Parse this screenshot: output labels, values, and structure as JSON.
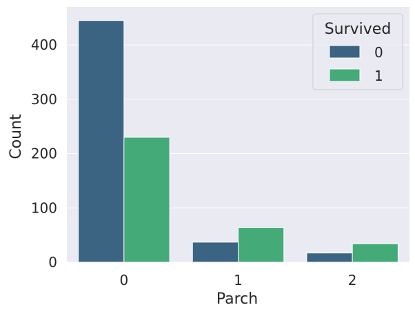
{
  "chart_data": {
    "type": "bar",
    "xlabel": "Parch",
    "ylabel": "Count",
    "categories": [
      "0",
      "1",
      "2"
    ],
    "ylim": [
      0,
      470
    ],
    "yticks": [
      0,
      100,
      200,
      300,
      400
    ],
    "grid": true,
    "legend_placement": "top-right",
    "legend_title": "Survived",
    "series": [
      {
        "name": "0",
        "values": [
          445,
          37,
          17
        ],
        "color": "#3b6482"
      },
      {
        "name": "1",
        "values": [
          230,
          64,
          34
        ],
        "color": "#44aa77"
      }
    ],
    "background_color": "#eaeaf2"
  }
}
